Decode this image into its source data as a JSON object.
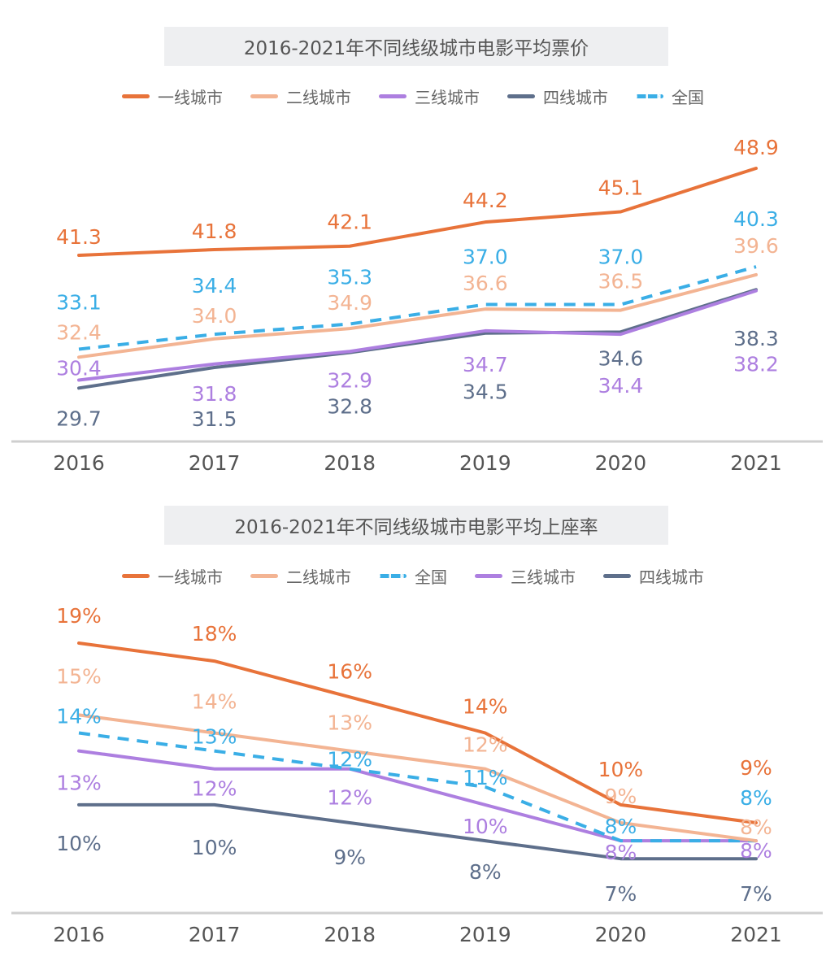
{
  "chart_data": [
    {
      "type": "line",
      "title": "2016-2021年不同线级城市电影平均票价",
      "categories": [
        "2016",
        "2017",
        "2018",
        "2019",
        "2020",
        "2021"
      ],
      "legend_position": "top",
      "grid": false,
      "series": [
        {
          "name": "一线城市",
          "color": "#e8733a",
          "dashed": false,
          "values": [
            41.3,
            41.8,
            42.1,
            44.2,
            45.1,
            48.9
          ],
          "labels": [
            "41.3",
            "41.8",
            "42.1",
            "44.2",
            "45.1",
            "48.9"
          ]
        },
        {
          "name": "二线城市",
          "color": "#f3b493",
          "dashed": false,
          "values": [
            32.4,
            34.0,
            34.9,
            36.6,
            36.5,
            39.6
          ],
          "labels": [
            "32.4",
            "34.0",
            "34.9",
            "36.6",
            "36.5",
            "39.6"
          ]
        },
        {
          "name": "三线城市",
          "color": "#ad7fe0",
          "dashed": false,
          "values": [
            30.4,
            31.8,
            32.9,
            34.7,
            34.4,
            38.2
          ],
          "labels": [
            "30.4",
            "31.8",
            "32.9",
            "34.7",
            "34.4",
            "38.2"
          ]
        },
        {
          "name": "四线城市",
          "color": "#5e6f8b",
          "dashed": false,
          "values": [
            29.7,
            31.5,
            32.8,
            34.5,
            34.6,
            38.3
          ],
          "labels": [
            "29.7",
            "31.5",
            "32.8",
            "34.5",
            "34.6",
            "38.3"
          ]
        },
        {
          "name": "全国",
          "color": "#3aaee6",
          "dashed": true,
          "values": [
            33.1,
            34.4,
            35.3,
            37.0,
            37.0,
            40.3
          ],
          "labels": [
            "33.1",
            "34.4",
            "35.3",
            "37.0",
            "37.0",
            "40.3"
          ]
        }
      ]
    },
    {
      "type": "line",
      "title": "2016-2021年不同线级城市电影平均上座率",
      "categories": [
        "2016",
        "2017",
        "2018",
        "2019",
        "2020",
        "2021"
      ],
      "legend_position": "top",
      "grid": false,
      "unit": "%",
      "series": [
        {
          "name": "一线城市",
          "color": "#e8733a",
          "dashed": false,
          "values": [
            19,
            18,
            16,
            14,
            10,
            9
          ],
          "labels": [
            "19%",
            "18%",
            "16%",
            "14%",
            "10%",
            "9%"
          ]
        },
        {
          "name": "二线城市",
          "color": "#f3b493",
          "dashed": false,
          "values": [
            15,
            14,
            13,
            12,
            9,
            8
          ],
          "labels": [
            "15%",
            "14%",
            "13%",
            "12%",
            "9%",
            "8%"
          ]
        },
        {
          "name": "全国",
          "color": "#3aaee6",
          "dashed": true,
          "values": [
            14,
            13,
            12,
            11,
            8,
            8
          ],
          "labels": [
            "14%",
            "13%",
            "12%",
            "11%",
            "8%",
            "8%"
          ]
        },
        {
          "name": "三线城市",
          "color": "#ad7fe0",
          "dashed": false,
          "values": [
            13,
            12,
            12,
            10,
            8,
            8
          ],
          "labels": [
            "13%",
            "12%",
            "12%",
            "10%",
            "8%",
            "8%"
          ]
        },
        {
          "name": "四线城市",
          "color": "#5e6f8b",
          "dashed": false,
          "values": [
            10,
            10,
            9,
            8,
            7,
            7
          ],
          "labels": [
            "10%",
            "10%",
            "9%",
            "8%",
            "7%",
            "7%"
          ]
        }
      ]
    }
  ]
}
